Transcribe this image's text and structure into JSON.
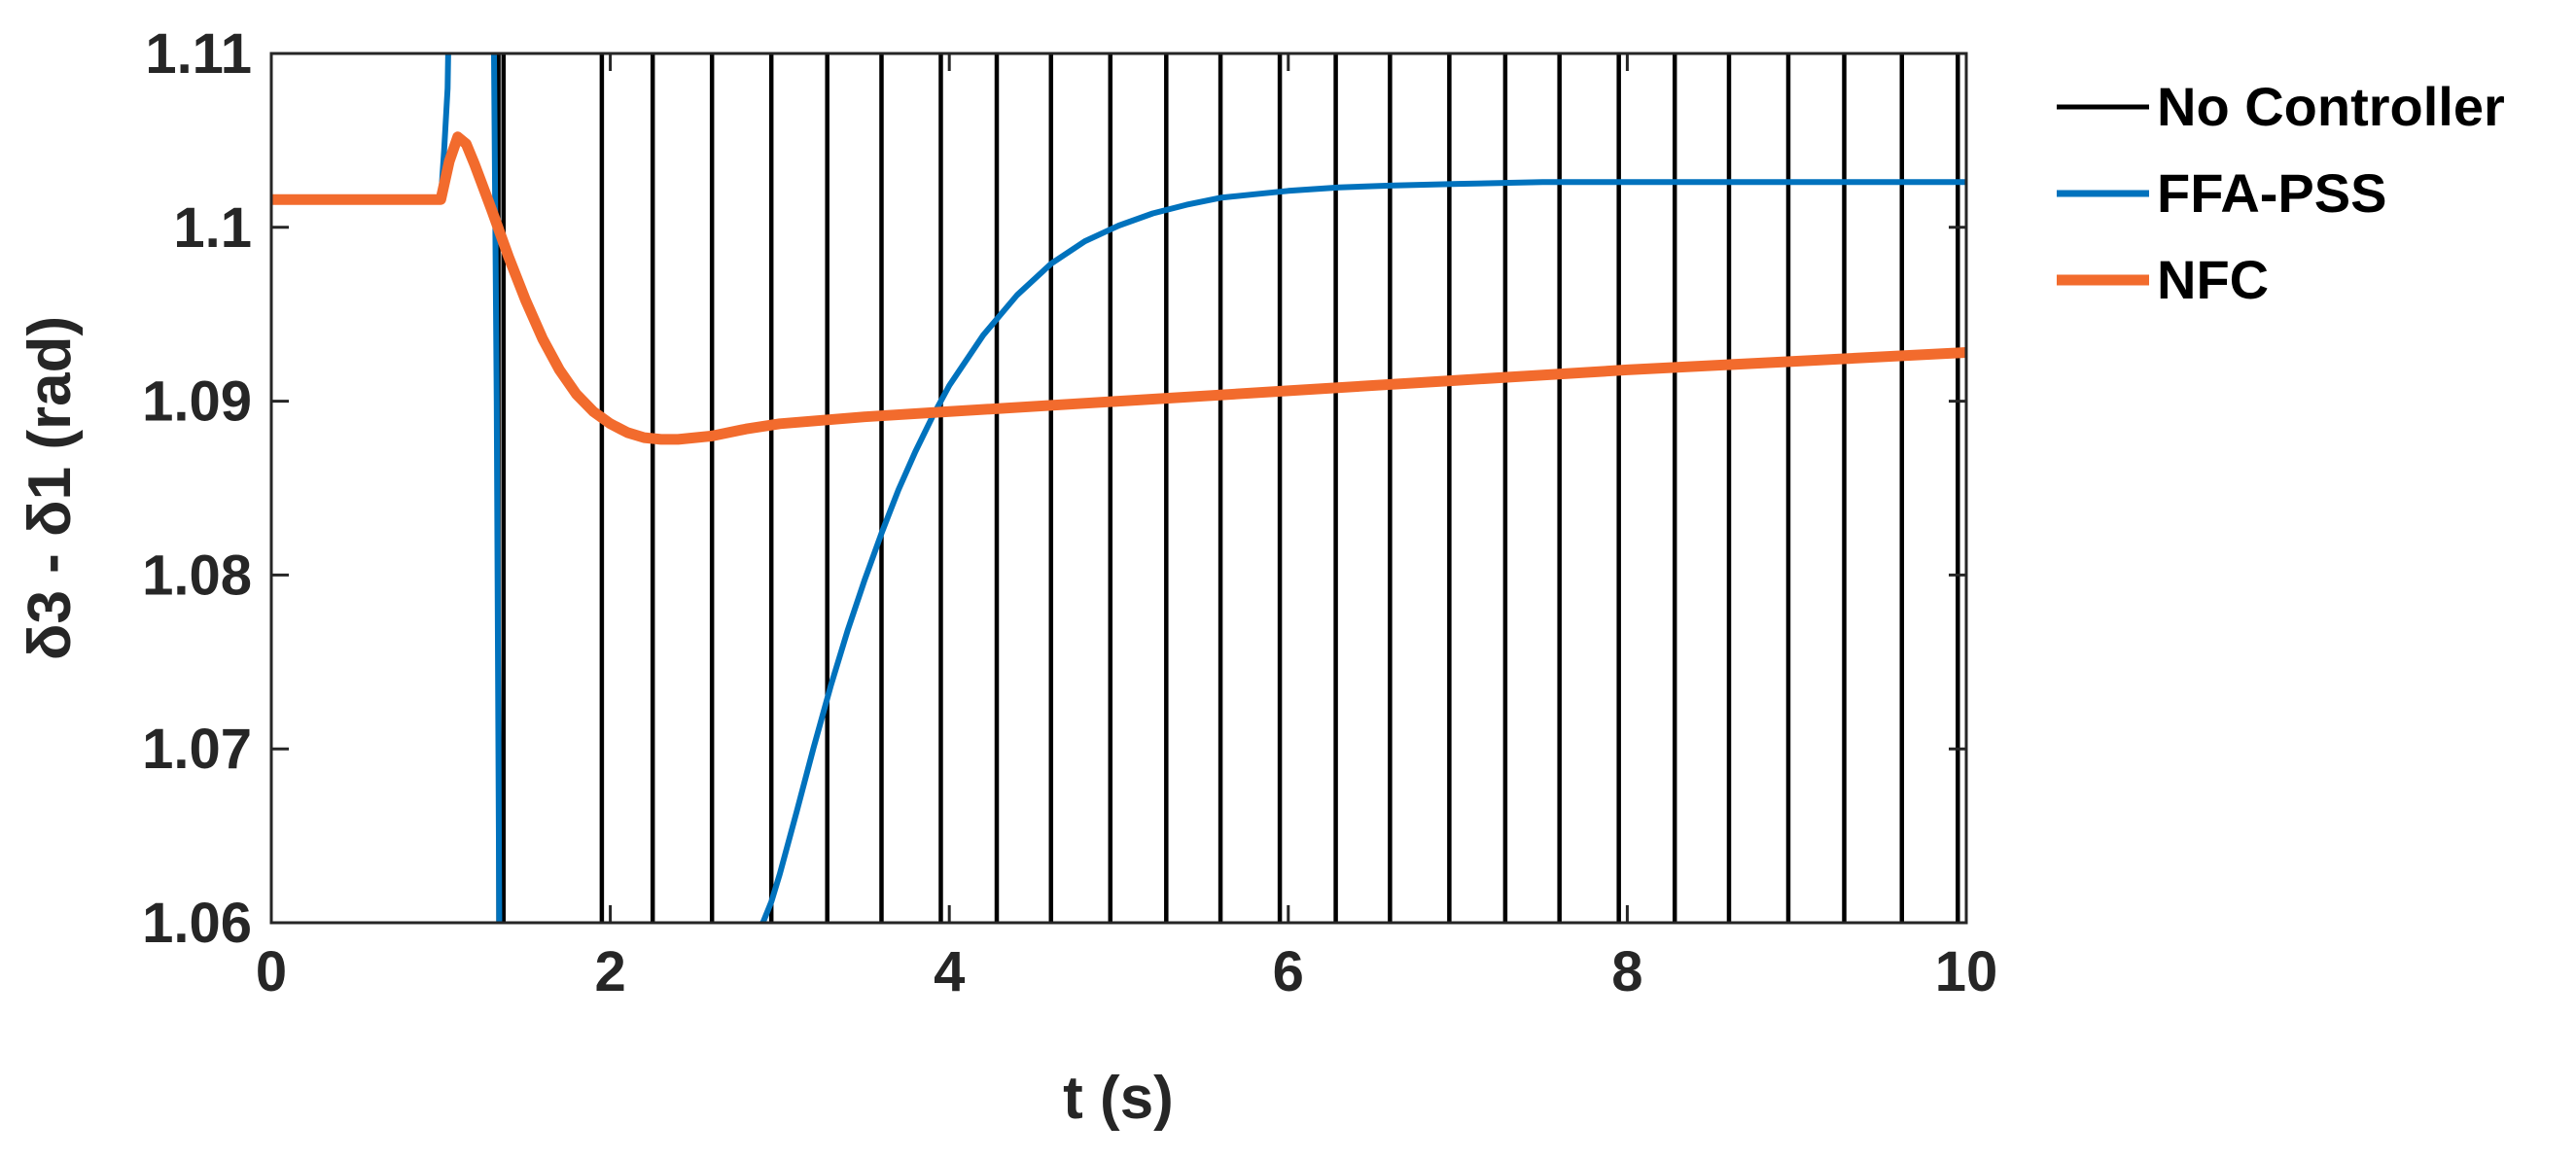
{
  "chart_data": {
    "type": "line",
    "title": "",
    "xlabel": "t (s)",
    "ylabel": "δ3 - δ1 (rad)",
    "xlim": [
      0,
      10
    ],
    "ylim": [
      1.06,
      1.11
    ],
    "xticks": [
      0,
      2,
      4,
      6,
      8,
      10
    ],
    "yticks": [
      1.06,
      1.07,
      1.08,
      1.09,
      1.1,
      1.11
    ],
    "xtick_labels": [
      "0",
      "2",
      "4",
      "6",
      "8",
      "10"
    ],
    "ytick_labels": [
      "1.06",
      "1.07",
      "1.08",
      "1.09",
      "1.1",
      "1.11"
    ],
    "grid": false,
    "legend_position": "outside-right-top",
    "series": [
      {
        "name": "No Controller",
        "color": "#000000",
        "display": "off-scale oscillation crossing full y-range",
        "crossings_x": [
          1.34,
          1.37,
          1.95,
          2.25,
          2.6,
          2.95,
          3.28,
          3.6,
          3.95,
          4.28,
          4.6,
          4.95,
          5.28,
          5.6,
          5.95,
          6.28,
          6.6,
          6.95,
          7.28,
          7.6,
          7.95,
          8.28,
          8.6,
          8.95,
          9.28,
          9.62,
          9.95
        ]
      },
      {
        "name": "FFA-PSS",
        "color": "#0072BD",
        "x": [
          0,
          1.0,
          1.02,
          1.04,
          1.06,
          1.3,
          1.31,
          1.33,
          1.35,
          2.9,
          2.95,
          3.0,
          3.1,
          3.2,
          3.3,
          3.4,
          3.5,
          3.6,
          3.7,
          3.8,
          3.9,
          4.0,
          4.2,
          4.4,
          4.6,
          4.8,
          5.0,
          5.2,
          5.4,
          5.6,
          5.8,
          6.0,
          6.3,
          6.6,
          7.0,
          7.5,
          8.0,
          8.5,
          9.0,
          9.5,
          10.0
        ],
        "y": [
          1.1016,
          1.1016,
          1.1045,
          1.108,
          1.12,
          null,
          1.115,
          1.09,
          1.05,
          1.06,
          1.0612,
          1.0628,
          1.0664,
          1.0701,
          1.0736,
          1.0768,
          1.0797,
          1.0824,
          1.0849,
          1.0871,
          1.0891,
          1.0909,
          1.0938,
          1.0961,
          1.0979,
          1.0992,
          1.1001,
          1.1008,
          1.1013,
          1.1017,
          1.1019,
          1.1021,
          1.1023,
          1.1024,
          1.1025,
          1.1026,
          1.1026,
          1.1026,
          1.1026,
          1.1026,
          1.1026
        ]
      },
      {
        "name": "NFC",
        "color": "#F26B2D",
        "x": [
          0,
          1.0,
          1.05,
          1.1,
          1.15,
          1.2,
          1.3,
          1.4,
          1.5,
          1.6,
          1.7,
          1.8,
          1.9,
          2.0,
          2.1,
          2.2,
          2.3,
          2.4,
          2.5,
          2.6,
          2.8,
          3.0,
          3.5,
          4.0,
          5.0,
          6.0,
          7.0,
          8.0,
          9.0,
          10.0
        ],
        "y": [
          1.1016,
          1.1016,
          1.1038,
          1.1052,
          1.1048,
          1.1036,
          1.101,
          1.0983,
          1.0958,
          1.0936,
          1.0918,
          1.0904,
          1.0894,
          1.0887,
          1.0882,
          1.0879,
          1.0878,
          1.0878,
          1.0879,
          1.088,
          1.0884,
          1.0887,
          1.0891,
          1.0894,
          1.09,
          1.0906,
          1.0912,
          1.0918,
          1.0923,
          1.0928
        ]
      }
    ]
  }
}
